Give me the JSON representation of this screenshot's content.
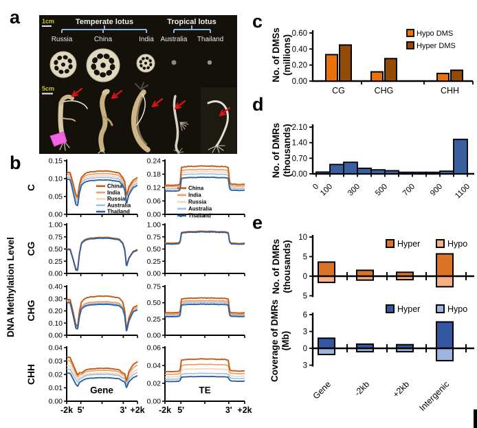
{
  "panels": {
    "a": "a",
    "b": "b",
    "c": "c",
    "d": "d",
    "e": "e"
  },
  "colors": {
    "photo_background": "#14110A",
    "bracket": "#8FB4D9",
    "scale_text": "#C8C820",
    "arrow_red": "#E11414",
    "tag_pink": "#F163E3",
    "hypo_dms": "#E8730D",
    "hyper_dms": "#954B08",
    "dmr_histogram": "#3A5F9E",
    "e_hyper_orange": "#DC7428",
    "e_hypo_orange": "#F5B183",
    "e_hyper_blue": "#33589F",
    "e_hypo_blue": "#9BB5DF"
  },
  "panel_a": {
    "scale_1cm": "1cm",
    "scale_5cm": "5cm",
    "groups": [
      {
        "label": "Temperate lotus",
        "countries": [
          "Russia",
          "China",
          "India"
        ]
      },
      {
        "label": "Tropical lotus",
        "countries": [
          "Australia",
          "Thailand"
        ]
      }
    ]
  },
  "panel_b": {
    "y_axis_title": "DNA Methylation Level",
    "row_labels": [
      "C",
      "CG",
      "CHG",
      "CHH"
    ],
    "column_labels": [
      "Gene",
      "TE"
    ],
    "x_tick_labels": [
      "-2k",
      "5'",
      "3'",
      "+2k"
    ],
    "legend": [
      "China",
      "India",
      "Russia",
      "Australia",
      "Thailand"
    ],
    "series_colors": {
      "China": "#C55A11",
      "India": "#ED9E68",
      "Russia": "#F6D5BB",
      "Australia": "#9DC3E6",
      "Thailand": "#2E5F9E"
    }
  },
  "chart_data": [
    {
      "id": "b_C_Gene",
      "type": "line",
      "row": "C",
      "col": "Gene",
      "shape": "gene",
      "ylim": [
        0,
        0.15
      ],
      "ytick_labels": [
        "0.00",
        "0.05",
        "0.10",
        "0.15"
      ],
      "series": [
        {
          "name": "China",
          "left": 0.118,
          "dip5": 0.048,
          "plateau": 0.121,
          "dip3": 0.052,
          "right": 0.103
        },
        {
          "name": "India",
          "left": 0.113,
          "dip5": 0.043,
          "plateau": 0.114,
          "dip3": 0.047,
          "right": 0.097
        },
        {
          "name": "Russia",
          "left": 0.108,
          "dip5": 0.038,
          "plateau": 0.108,
          "dip3": 0.042,
          "right": 0.092
        },
        {
          "name": "Australia",
          "left": 0.104,
          "dip5": 0.032,
          "plateau": 0.103,
          "dip3": 0.036,
          "right": 0.087
        },
        {
          "name": "Thailand",
          "left": 0.098,
          "dip5": 0.024,
          "plateau": 0.096,
          "dip3": 0.029,
          "right": 0.081
        }
      ]
    },
    {
      "id": "b_C_TE",
      "type": "line",
      "row": "C",
      "col": "TE",
      "shape": "te",
      "ylim": [
        0,
        0.24
      ],
      "ytick_labels": [
        "0.00",
        "0.06",
        "0.12",
        "0.18",
        "0.24"
      ],
      "series": [
        {
          "name": "China",
          "left": 0.13,
          "plateau": 0.215,
          "right": 0.135
        },
        {
          "name": "India",
          "left": 0.125,
          "plateau": 0.2,
          "right": 0.128
        },
        {
          "name": "Russia",
          "left": 0.119,
          "plateau": 0.19,
          "right": 0.122
        },
        {
          "name": "Australia",
          "left": 0.113,
          "plateau": 0.18,
          "right": 0.116
        },
        {
          "name": "Thailand",
          "left": 0.104,
          "plateau": 0.165,
          "right": 0.108
        }
      ]
    },
    {
      "id": "b_CG_Gene",
      "type": "line",
      "row": "CG",
      "col": "Gene",
      "shape": "gene",
      "ylim": [
        0,
        1.0
      ],
      "ytick_labels": [
        "0.00",
        "0.25",
        "0.50",
        "0.75",
        "1.00"
      ],
      "series": [
        {
          "name": "China",
          "left": 0.5,
          "dip5": 0.08,
          "plateau": 0.735,
          "dip3": 0.155,
          "right": 0.485
        },
        {
          "name": "India",
          "left": 0.505,
          "dip5": 0.075,
          "plateau": 0.73,
          "dip3": 0.15,
          "right": 0.49
        },
        {
          "name": "Russia",
          "left": 0.51,
          "dip5": 0.07,
          "plateau": 0.74,
          "dip3": 0.16,
          "right": 0.495
        },
        {
          "name": "Australia",
          "left": 0.495,
          "dip5": 0.065,
          "plateau": 0.725,
          "dip3": 0.145,
          "right": 0.48
        },
        {
          "name": "Thailand",
          "left": 0.49,
          "dip5": 0.06,
          "plateau": 0.72,
          "dip3": 0.14,
          "right": 0.475
        }
      ]
    },
    {
      "id": "b_CG_TE",
      "type": "line",
      "row": "CG",
      "col": "TE",
      "shape": "te",
      "ylim": [
        0,
        1.0
      ],
      "ytick_labels": [
        "0.00",
        "0.25",
        "0.50",
        "0.75",
        "1.00"
      ],
      "series": [
        {
          "name": "China",
          "left": 0.615,
          "plateau": 0.855,
          "right": 0.615
        },
        {
          "name": "India",
          "left": 0.62,
          "plateau": 0.86,
          "right": 0.62
        },
        {
          "name": "Russia",
          "left": 0.625,
          "plateau": 0.865,
          "right": 0.625
        },
        {
          "name": "Australia",
          "left": 0.61,
          "plateau": 0.85,
          "right": 0.61
        },
        {
          "name": "Thailand",
          "left": 0.6,
          "plateau": 0.845,
          "right": 0.605
        }
      ]
    },
    {
      "id": "b_CHG_Gene",
      "type": "line",
      "row": "CHG",
      "col": "Gene",
      "shape": "gene",
      "ylim": [
        0,
        0.4
      ],
      "ytick_labels": [
        "0.00",
        "0.10",
        "0.20",
        "0.30",
        "0.40"
      ],
      "series": [
        {
          "name": "China",
          "left": 0.295,
          "dip5": 0.075,
          "plateau": 0.32,
          "dip3": 0.045,
          "right": 0.245
        },
        {
          "name": "India",
          "left": 0.285,
          "dip5": 0.065,
          "plateau": 0.275,
          "dip3": 0.035,
          "right": 0.23
        },
        {
          "name": "Russia",
          "left": 0.28,
          "dip5": 0.06,
          "plateau": 0.268,
          "dip3": 0.032,
          "right": 0.222
        },
        {
          "name": "Australia",
          "left": 0.275,
          "dip5": 0.055,
          "plateau": 0.262,
          "dip3": 0.03,
          "right": 0.215
        },
        {
          "name": "Thailand",
          "left": 0.268,
          "dip5": 0.05,
          "plateau": 0.253,
          "dip3": 0.027,
          "right": 0.208
        }
      ]
    },
    {
      "id": "b_CHG_TE",
      "type": "line",
      "row": "CHG",
      "col": "TE",
      "shape": "te",
      "ylim": [
        0,
        0.75
      ],
      "ytick_labels": [
        "0.00",
        "0.25",
        "0.50",
        "0.75"
      ],
      "series": [
        {
          "name": "China",
          "left": 0.345,
          "plateau": 0.57,
          "right": 0.345
        },
        {
          "name": "India",
          "left": 0.325,
          "plateau": 0.53,
          "right": 0.325
        },
        {
          "name": "Russia",
          "left": 0.315,
          "plateau": 0.515,
          "right": 0.315
        },
        {
          "name": "Australia",
          "left": 0.305,
          "plateau": 0.5,
          "right": 0.305
        },
        {
          "name": "Thailand",
          "left": 0.285,
          "plateau": 0.475,
          "right": 0.29
        }
      ]
    },
    {
      "id": "b_CHH_Gene",
      "type": "line",
      "row": "CHH",
      "col": "Gene",
      "shape": "gene",
      "ylim": [
        0,
        0.04
      ],
      "ytick_labels": [
        "0.00",
        "0.01",
        "0.02",
        "0.03",
        "0.04"
      ],
      "series": [
        {
          "name": "China",
          "left": 0.033,
          "dip5": 0.0195,
          "plateau": 0.0245,
          "dip3": 0.015,
          "right": 0.0295
        },
        {
          "name": "India",
          "left": 0.0305,
          "dip5": 0.018,
          "plateau": 0.023,
          "dip3": 0.014,
          "right": 0.027
        },
        {
          "name": "Russia",
          "left": 0.0265,
          "dip5": 0.016,
          "plateau": 0.021,
          "dip3": 0.013,
          "right": 0.0235
        },
        {
          "name": "Australia",
          "left": 0.024,
          "dip5": 0.014,
          "plateau": 0.02,
          "dip3": 0.012,
          "right": 0.0215
        },
        {
          "name": "Thailand",
          "left": 0.021,
          "dip5": 0.011,
          "plateau": 0.0175,
          "dip3": 0.01,
          "right": 0.019
        }
      ]
    },
    {
      "id": "b_CHH_TE",
      "type": "line",
      "row": "CHH",
      "col": "TE",
      "shape": "te",
      "ylim": [
        0,
        0.06
      ],
      "ytick_labels": [
        "0.00",
        "0.02",
        "0.04",
        "0.06"
      ],
      "series": [
        {
          "name": "China",
          "left": 0.033,
          "plateau": 0.047,
          "right": 0.034
        },
        {
          "name": "India",
          "left": 0.03,
          "plateau": 0.041,
          "right": 0.031
        },
        {
          "name": "Russia",
          "left": 0.027,
          "plateau": 0.036,
          "right": 0.028
        },
        {
          "name": "Australia",
          "left": 0.0245,
          "plateau": 0.031,
          "right": 0.0255
        },
        {
          "name": "Thailand",
          "left": 0.022,
          "plateau": 0.0275,
          "right": 0.0225
        }
      ]
    },
    {
      "id": "c_dms",
      "type": "bar",
      "ylabel_lines": [
        "No. of DMSs",
        "(millions)"
      ],
      "categories": [
        "CG",
        "CHG",
        "CHH"
      ],
      "ytick_labels": [
        "0.00",
        "0.20",
        "0.40",
        "0.60"
      ],
      "ylim": [
        0,
        0.6
      ],
      "legend": [
        "Hypo DMS",
        "Hyper DMS"
      ],
      "series": [
        {
          "name": "Hypo DMS",
          "color": "#E8730D",
          "values": [
            0.33,
            0.115,
            0.095
          ]
        },
        {
          "name": "Hyper DMS",
          "color": "#954B08",
          "values": [
            0.45,
            0.28,
            0.135
          ]
        }
      ]
    },
    {
      "id": "d_dmr_hist",
      "type": "bar",
      "ylabel_lines": [
        "No. of DMRs",
        "(thousands)"
      ],
      "ytick_labels": [
        "0.00",
        "0.70",
        "1.40",
        "2.10"
      ],
      "ylim": [
        0,
        2.1
      ],
      "bin_start": 0,
      "bin_width": 100,
      "values": [
        0.08,
        0.42,
        0.52,
        0.25,
        0.18,
        0.14,
        0.07,
        0.07,
        0.07,
        0.12,
        1.55
      ],
      "x_tick_labels": [
        "0",
        "100",
        "300",
        "500",
        "700",
        "900",
        "1100"
      ],
      "bar_color": "#3A5F9E"
    },
    {
      "id": "e_dmr_count",
      "type": "diverging-bar",
      "ylabel_lines": [
        "No. of DMRs",
        "(thousands)"
      ],
      "categories": [
        "Gene",
        "-2kb",
        "+2kb",
        "Intergenic"
      ],
      "ytick_labels": [
        "10",
        "5",
        "0",
        "5"
      ],
      "ytick_values": [
        10,
        5,
        0,
        -5
      ],
      "legend": [
        "Hyper",
        "Hypo"
      ],
      "hyper": [
        3.6,
        1.5,
        1.0,
        5.7
      ],
      "hypo": [
        1.6,
        1.0,
        0.9,
        2.7
      ],
      "colors": {
        "hyper": "#DC7428",
        "hypo": "#F5B183"
      }
    },
    {
      "id": "e_dmr_coverage",
      "type": "diverging-bar",
      "ylabel_lines": [
        "Coverage of DMRs",
        "(Mb)"
      ],
      "categories": [
        "Gene",
        "-2kb",
        "+2kb",
        "Intergenic"
      ],
      "ytick_labels": [
        "6",
        "3",
        "0",
        "3"
      ],
      "ytick_values": [
        6,
        3,
        0,
        -3
      ],
      "legend": [
        "Hyper",
        "Hypo"
      ],
      "hyper": [
        1.8,
        0.75,
        0.65,
        4.7
      ],
      "hypo": [
        1.1,
        0.6,
        0.6,
        2.2
      ],
      "colors": {
        "hyper": "#33589F",
        "hypo": "#9BB5DF"
      }
    }
  ]
}
